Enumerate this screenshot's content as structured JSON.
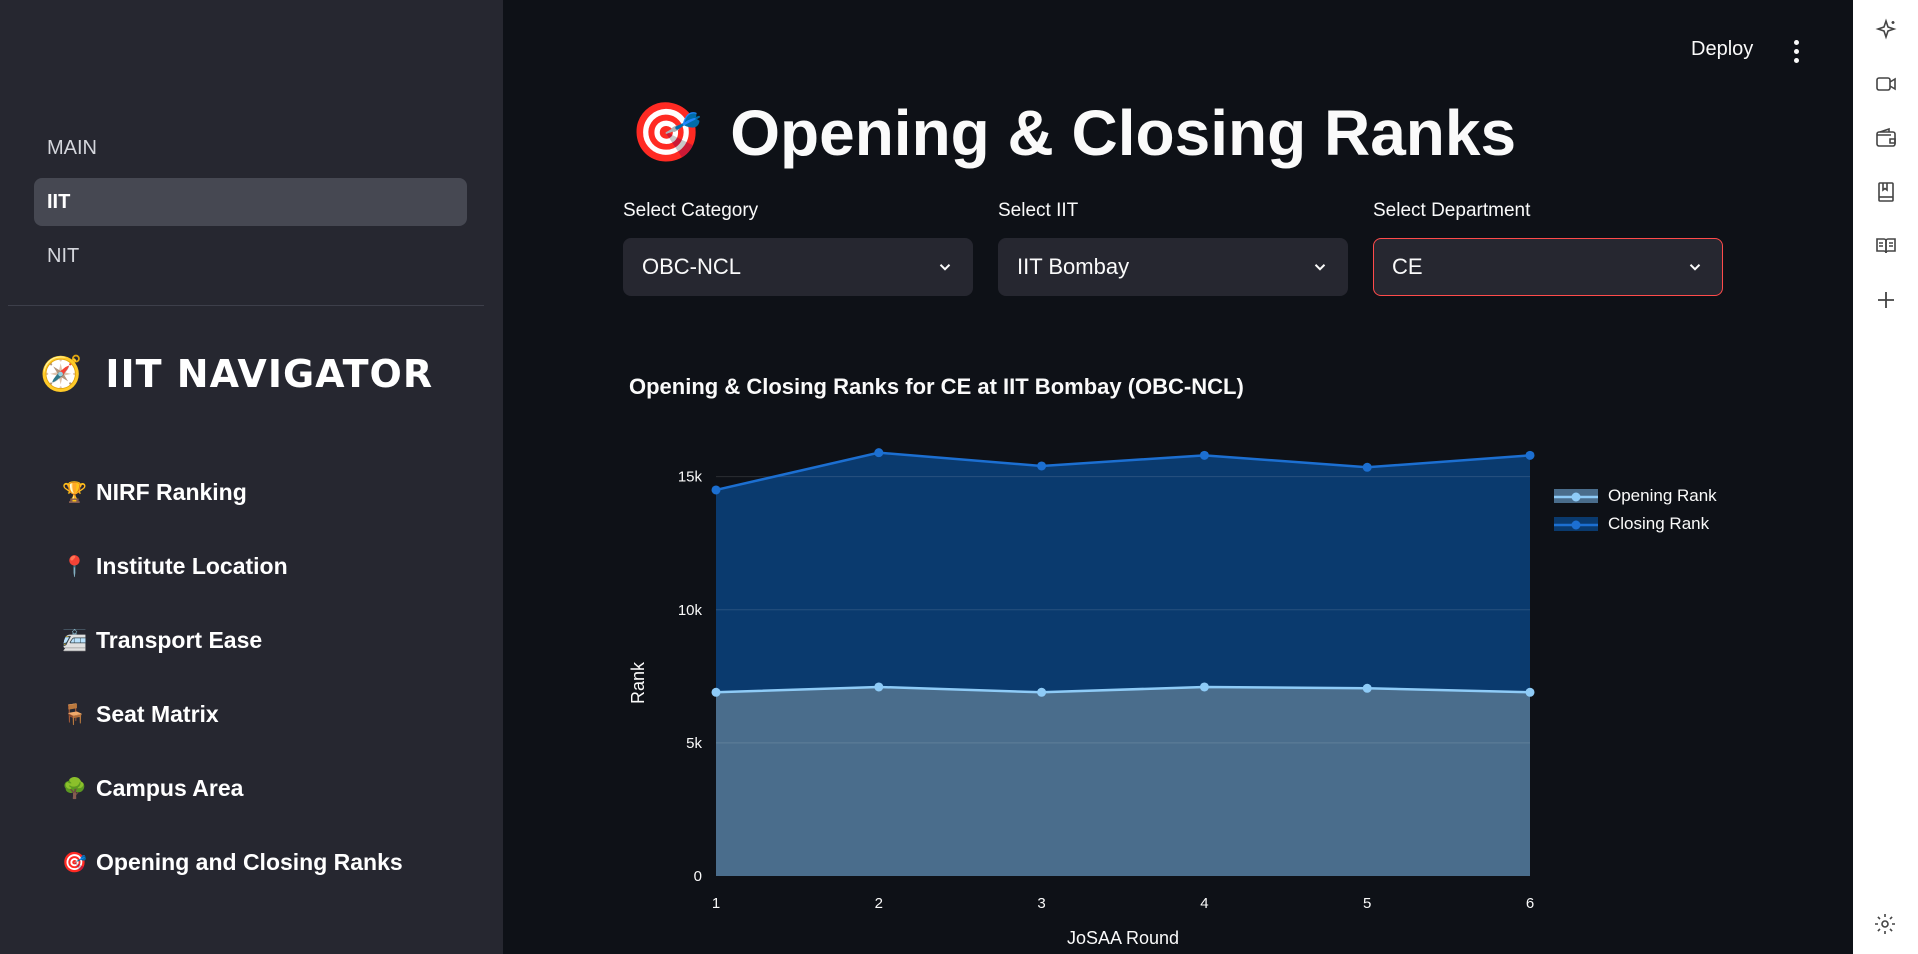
{
  "sidebar": {
    "nav": [
      {
        "label": "MAIN",
        "active": false
      },
      {
        "label": "IIT",
        "active": true
      },
      {
        "label": "NIT",
        "active": false
      }
    ],
    "title": {
      "emoji": "🧭",
      "text": "IIT NAVIGATOR"
    },
    "links": [
      {
        "emoji": "🏆",
        "label": "NIRF Ranking"
      },
      {
        "emoji": "📍",
        "label": "Institute Location"
      },
      {
        "emoji": "🚈",
        "label": "Transport Ease"
      },
      {
        "emoji": "🪑",
        "label": "Seat Matrix"
      },
      {
        "emoji": "🌳",
        "label": "Campus Area"
      },
      {
        "emoji": "🎯",
        "label": "Opening and Closing Ranks"
      }
    ]
  },
  "header": {
    "deploy_label": "Deploy"
  },
  "main": {
    "title_emoji": "🎯",
    "title": "Opening & Closing Ranks",
    "selects": [
      {
        "label": "Select Category",
        "value": "OBC-NCL"
      },
      {
        "label": "Select IIT",
        "value": "IIT Bombay"
      },
      {
        "label": "Select Department",
        "value": "CE"
      }
    ]
  },
  "colors": {
    "accent": "#ff4b4b",
    "opening": "#8ecbf7",
    "closing": "#1c6fd1"
  },
  "chart_data": {
    "type": "area",
    "title": "Opening & Closing Ranks for CE at IIT Bombay (OBC-NCL)",
    "xlabel": "JoSAA Round",
    "ylabel": "Rank",
    "x": [
      1,
      2,
      3,
      4,
      5,
      6
    ],
    "ylim": [
      0,
      16000
    ],
    "yticks": [
      0,
      5000,
      10000,
      15000
    ],
    "ytick_labels": [
      "0",
      "5k",
      "10k",
      "15k"
    ],
    "legend_position": "right",
    "series": [
      {
        "name": "Opening Rank",
        "values": [
          6900,
          7100,
          6900,
          7100,
          7050,
          6900
        ]
      },
      {
        "name": "Closing Rank",
        "values": [
          14500,
          15900,
          15400,
          15800,
          15350,
          15800
        ]
      }
    ]
  }
}
